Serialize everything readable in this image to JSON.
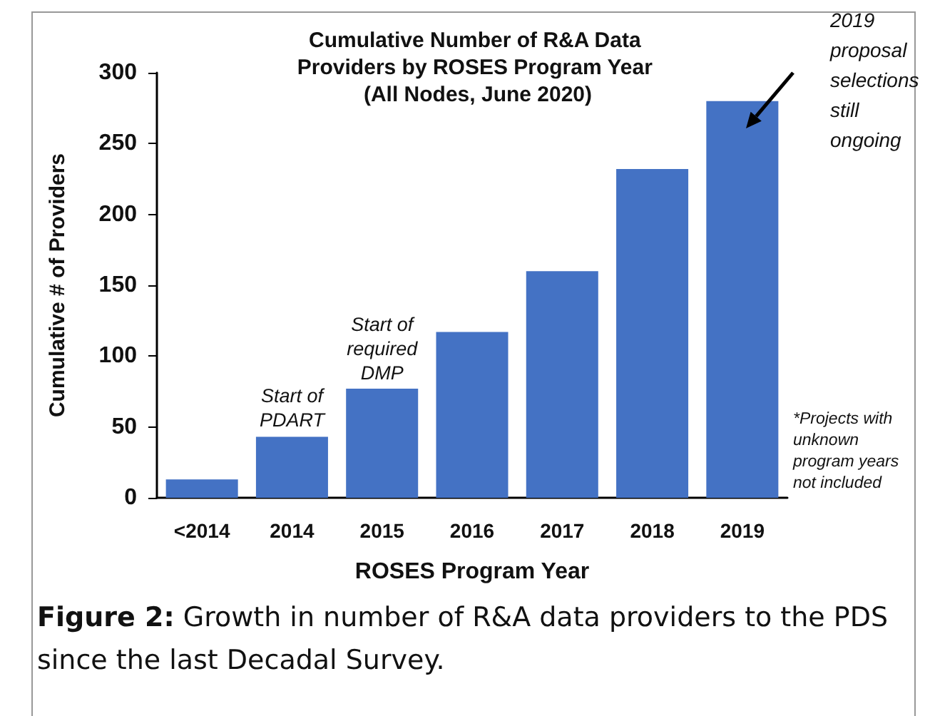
{
  "chart_data": {
    "type": "bar",
    "title": "Cumulative Number of R&A Data Providers by ROSES Program Year (All Nodes, June 2020)",
    "xlabel": "ROSES Program Year",
    "ylabel": "Cumulative # of Providers",
    "categories": [
      "<2014",
      "2014",
      "2015",
      "2016",
      "2017",
      "2018",
      "2019"
    ],
    "values": [
      13,
      43,
      77,
      117,
      160,
      232,
      280
    ],
    "color": "#4472c4",
    "ylim": [
      0,
      300
    ],
    "yticks": [
      0,
      50,
      100,
      150,
      200,
      250,
      300
    ],
    "grid": false,
    "annotations": [
      {
        "text": "Start of PDART",
        "x": "2014",
        "y": 43
      },
      {
        "text": "Start of required DMP",
        "x": "2015",
        "y": 77
      },
      "2019 proposal selections still ongoing",
      "*Projects with unknown program years not included",
      "Figure 2: Growth in number of R&A data providers to the PDS since the last Decadal Survey."
    ]
  }
}
